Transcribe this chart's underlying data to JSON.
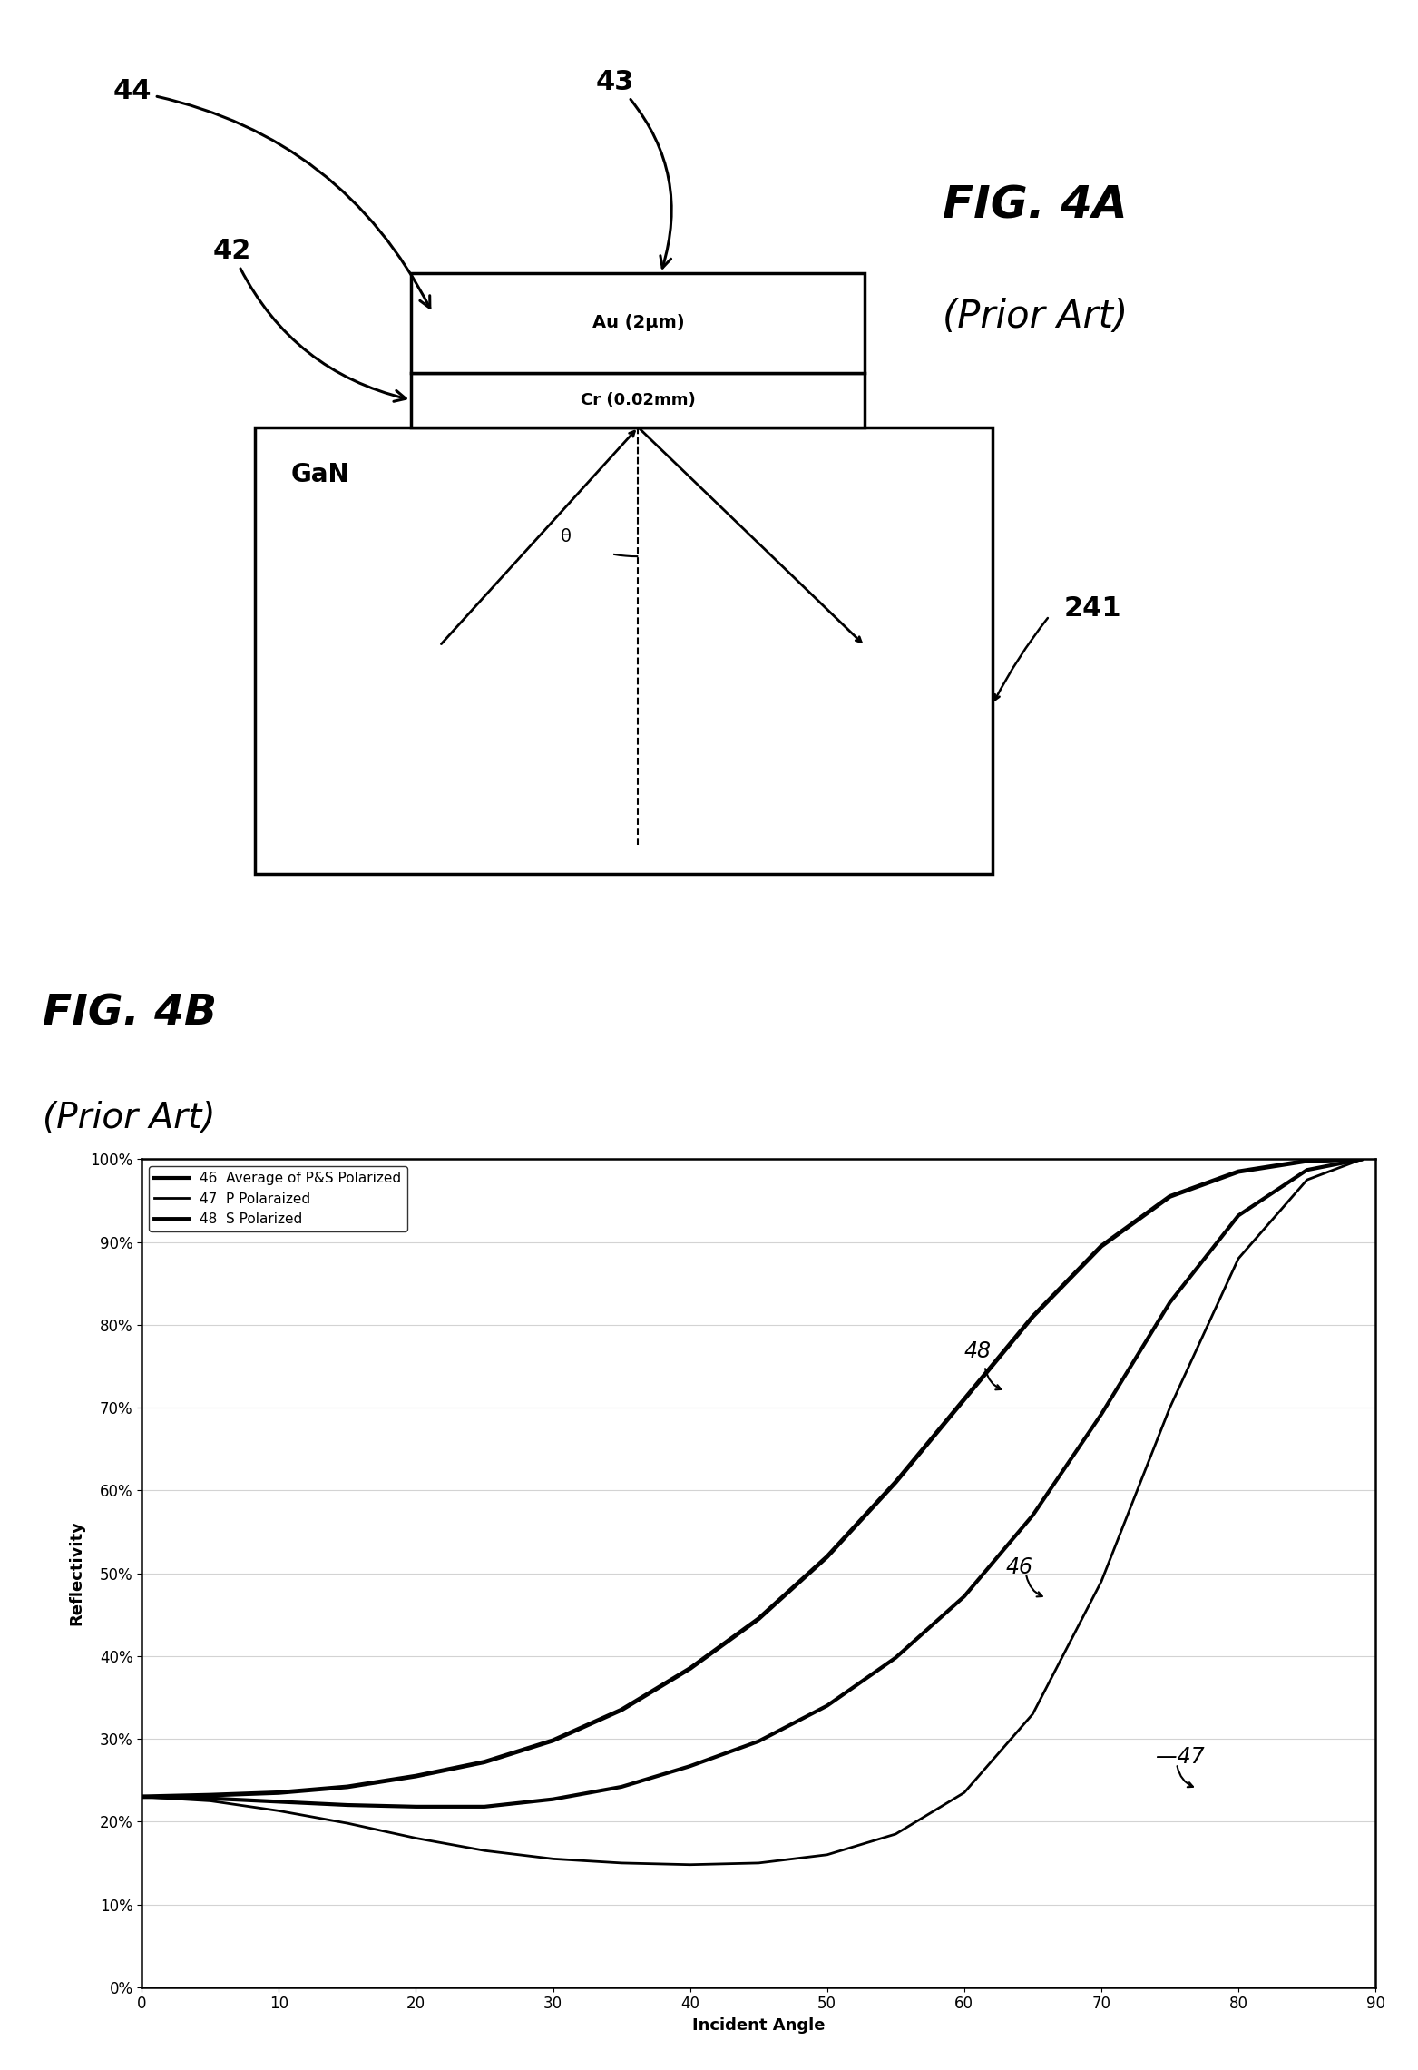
{
  "fig4a_title": "FIG. 4A",
  "fig4a_subtitle": "(Prior Art)",
  "fig4b_title": "FIG. 4B",
  "fig4b_subtitle": "(Prior Art)",
  "au_label": "Au (2μm)",
  "cr_label": "Cr (0.02mm)",
  "gan_label": "GaN",
  "label_42": "42",
  "label_43": "43",
  "label_44": "44",
  "label_241": "241",
  "label_theta": "θ",
  "xlabel": "Incident Angle",
  "ylabel": "Reflectivity",
  "legend_46_text": "Average of P&S Polarized",
  "legend_47_text": "P Polaraized",
  "legend_48_text": "S Polarized",
  "yticks": [
    0,
    10,
    20,
    30,
    40,
    50,
    60,
    70,
    80,
    90,
    100
  ],
  "xticks": [
    0,
    10,
    20,
    30,
    40,
    50,
    60,
    70,
    80,
    90
  ],
  "background_color": "#ffffff",
  "line_color": "#000000",
  "angles": [
    0,
    5,
    10,
    15,
    20,
    25,
    30,
    35,
    40,
    45,
    50,
    55,
    60,
    65,
    70,
    75,
    80,
    85,
    89
  ],
  "R_s": [
    0.23,
    0.232,
    0.235,
    0.242,
    0.255,
    0.272,
    0.298,
    0.335,
    0.385,
    0.445,
    0.52,
    0.61,
    0.71,
    0.81,
    0.895,
    0.955,
    0.985,
    0.998,
    1.0
  ],
  "R_p": [
    0.23,
    0.225,
    0.213,
    0.198,
    0.18,
    0.165,
    0.155,
    0.15,
    0.148,
    0.15,
    0.16,
    0.185,
    0.235,
    0.33,
    0.49,
    0.7,
    0.88,
    0.975,
    1.0
  ],
  "R_avg": [
    0.23,
    0.228,
    0.224,
    0.22,
    0.218,
    0.218,
    0.227,
    0.242,
    0.267,
    0.297,
    0.34,
    0.398,
    0.472,
    0.57,
    0.692,
    0.827,
    0.932,
    0.987,
    1.0
  ]
}
